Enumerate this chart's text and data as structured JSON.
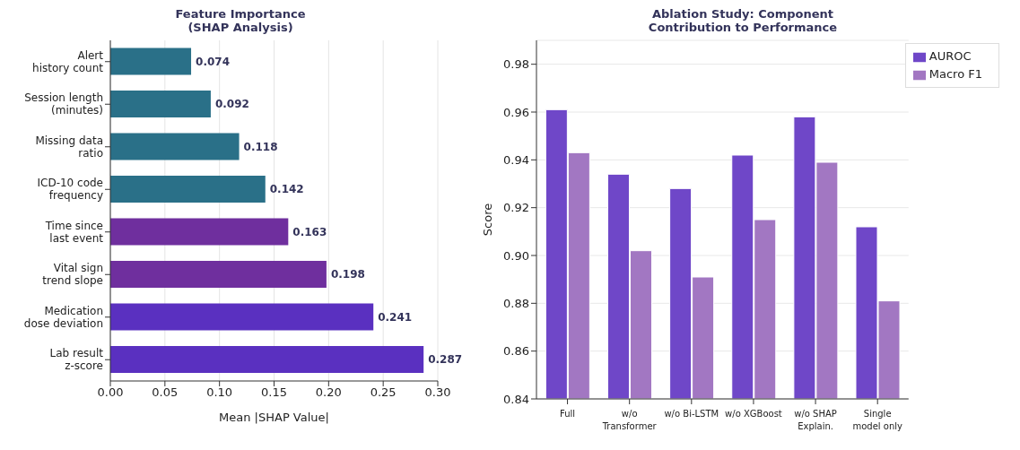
{
  "chart_data": [
    {
      "type": "bar",
      "orientation": "horizontal",
      "title": "Feature Importance\n(SHAP Analysis)",
      "xlabel": "Mean |SHAP Value|",
      "categories": [
        "Alert\nhistory count",
        "Session length\n(minutes)",
        "Missing data\nratio",
        "ICD-10 code\nfrequency",
        "Time since\nlast event",
        "Vital sign\ntrend slope",
        "Medication\ndose deviation",
        "Lab result\nz-score"
      ],
      "values": [
        0.074,
        0.092,
        0.118,
        0.142,
        0.163,
        0.198,
        0.241,
        0.287
      ],
      "colors": [
        "#2a7088",
        "#2a7088",
        "#2a7088",
        "#2a7088",
        "#6f2f9e",
        "#6f2f9e",
        "#5a30c0",
        "#5a30c0"
      ],
      "xlim": [
        0,
        0.3
      ],
      "xticks": [
        {
          "value": 0,
          "label": "0.00"
        },
        {
          "value": 0.05,
          "label": "0.05"
        },
        {
          "value": 0.1,
          "label": "0.10"
        },
        {
          "value": 0.15,
          "label": "0.15"
        },
        {
          "value": 0.2,
          "label": "0.20"
        },
        {
          "value": 0.25,
          "label": "0.25"
        },
        {
          "value": 0.3,
          "label": "0.30"
        }
      ],
      "grid": "x",
      "data_labels": true
    },
    {
      "type": "bar",
      "title": "Ablation Study: Component\nContribution to Performance",
      "ylabel": "Score",
      "categories": [
        "Full",
        "w/o\nTransformer",
        "w/o Bi-LSTM",
        "w/o XGBoost",
        "w/o SHAP\nExplain.",
        "Single\nmodel only"
      ],
      "series": [
        {
          "name": "AUROC",
          "color": "#6f47c8",
          "values": [
            0.961,
            0.934,
            0.928,
            0.942,
            0.958,
            0.912
          ]
        },
        {
          "name": "Macro F1",
          "color": "#a277c2",
          "values": [
            0.943,
            0.902,
            0.891,
            0.915,
            0.939,
            0.881
          ]
        }
      ],
      "ylim": [
        0.84,
        0.99
      ],
      "yticks": [
        {
          "value": 0.84,
          "label": "0.84"
        },
        {
          "value": 0.86,
          "label": "0.86"
        },
        {
          "value": 0.88,
          "label": "0.88"
        },
        {
          "value": 0.9,
          "label": "0.90"
        },
        {
          "value": 0.92,
          "label": "0.92"
        },
        {
          "value": 0.94,
          "label": "0.94"
        },
        {
          "value": 0.96,
          "label": "0.96"
        },
        {
          "value": 0.98,
          "label": "0.98"
        }
      ],
      "grid": "y",
      "legend": "top right"
    }
  ]
}
